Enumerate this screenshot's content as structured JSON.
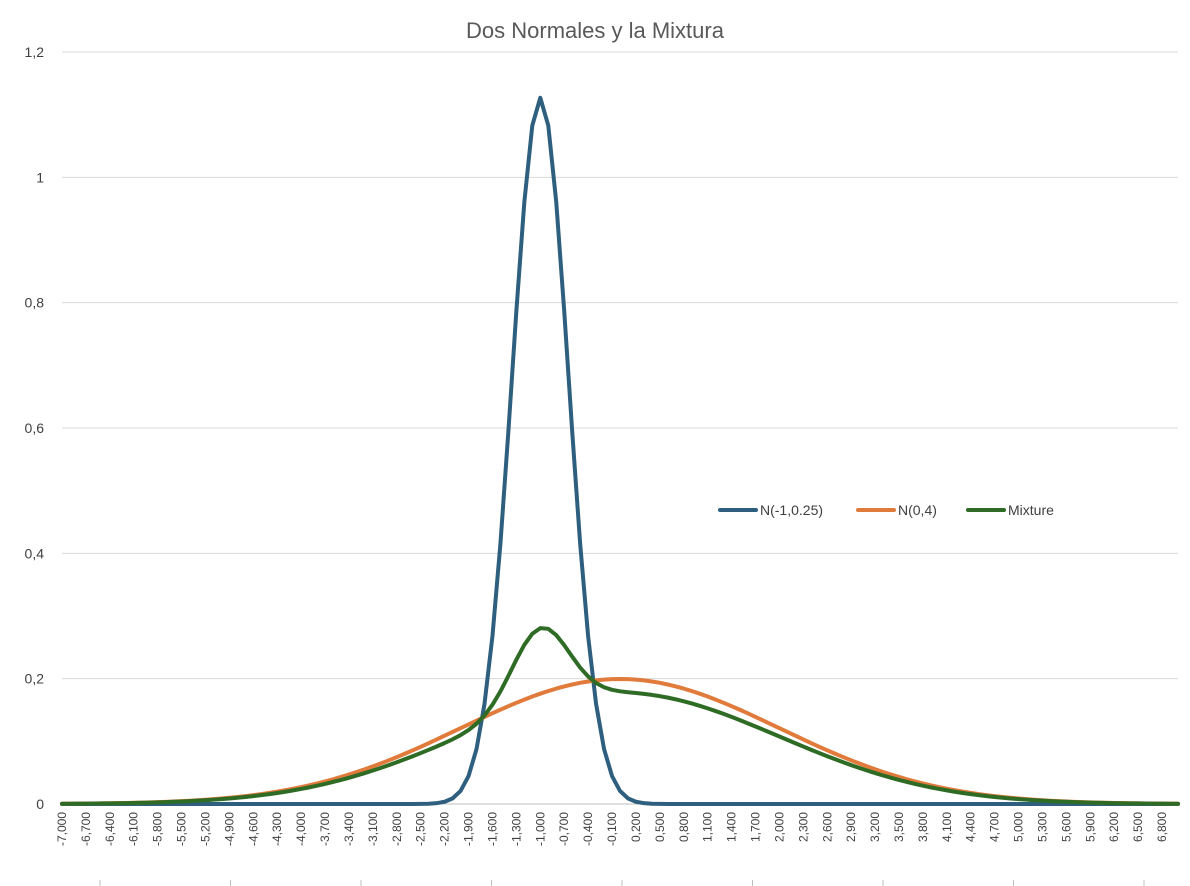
{
  "chart_data": {
    "type": "line",
    "title": "Dos Normales y la Mixtura",
    "xlabel": "",
    "ylabel": "",
    "x_range": [
      -7.0,
      7.0
    ],
    "x_step": 0.1,
    "ylim": [
      0,
      1.2
    ],
    "grid": true,
    "legend_position": "right-middle",
    "y_ticks": [
      "0",
      "0,2",
      "0,4",
      "0,6",
      "0,8",
      "1",
      "1,2"
    ],
    "y_tick_values": [
      0,
      0.2,
      0.4,
      0.6,
      0.8,
      1.0,
      1.2
    ],
    "x_tick_labels": [
      "-7,000",
      "-6,700",
      "-6,400",
      "-6,100",
      "-5,800",
      "-5,500",
      "-5,200",
      "-4,900",
      "-4,600",
      "-4,300",
      "-4,000",
      "-3,700",
      "-3,400",
      "-3,100",
      "-2,800",
      "-2,500",
      "-2,200",
      "-1,900",
      "-1,600",
      "-1,300",
      "-1,000",
      "-0,700",
      "-0,400",
      "-0,100",
      "0,200",
      "0,500",
      "0,800",
      "1,100",
      "1,400",
      "1,700",
      "2,000",
      "2,300",
      "2,600",
      "2,900",
      "3,200",
      "3,500",
      "3,800",
      "4,100",
      "4,400",
      "4,700",
      "5,000",
      "5,300",
      "5,600",
      "5,900",
      "6,200",
      "6,500",
      "6,800"
    ],
    "x_tick_values": [
      -7.0,
      -6.7,
      -6.4,
      -6.1,
      -5.8,
      -5.5,
      -5.2,
      -4.9,
      -4.6,
      -4.3,
      -4.0,
      -3.7,
      -3.4,
      -3.1,
      -2.8,
      -2.5,
      -2.2,
      -1.9,
      -1.6,
      -1.3,
      -1.0,
      -0.7,
      -0.4,
      -0.1,
      0.2,
      0.5,
      0.8,
      1.1,
      1.4,
      1.7,
      2.0,
      2.3,
      2.6,
      2.9,
      3.2,
      3.5,
      3.8,
      4.1,
      4.4,
      4.7,
      5.0,
      5.3,
      5.6,
      5.9,
      6.2,
      6.5,
      6.8
    ],
    "series": [
      {
        "name": "N(-1,0.25)",
        "color": "#2e5f7f",
        "mean": -1.0,
        "sd": 0.354,
        "weight": 1.0
      },
      {
        "name": "N(0,4)",
        "color": "#e07b3c",
        "mean": 0.0,
        "sd": 2.0,
        "weight": 1.0
      },
      {
        "name": "Mixture",
        "color": "#2e6b24",
        "components": [
          {
            "mean": -1.0,
            "sd": 0.354,
            "weight": 0.11
          },
          {
            "mean": 0.0,
            "sd": 2.0,
            "weight": 0.89
          }
        ]
      }
    ]
  }
}
